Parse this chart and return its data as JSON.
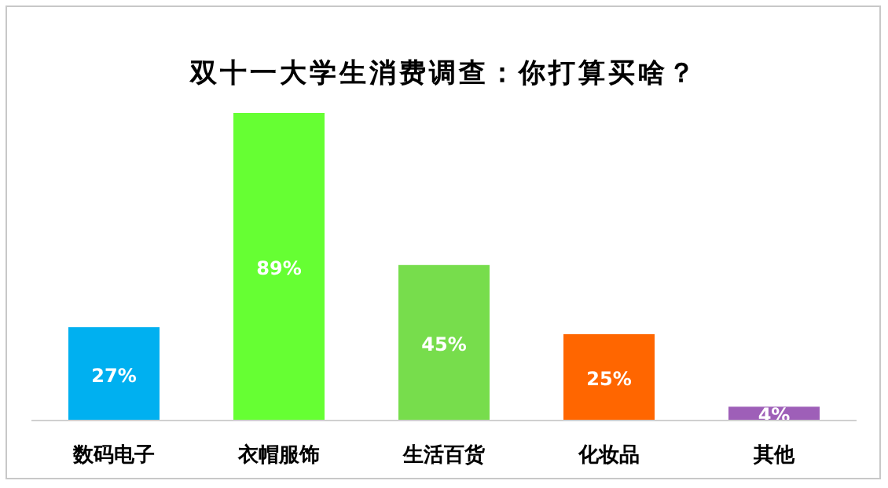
{
  "chart_data": {
    "type": "bar",
    "title": "双十一大学生消费调查：你打算买啥？",
    "categories": [
      "数码电子",
      "衣帽服饰",
      "生活百货",
      "化妆品",
      "其他"
    ],
    "values": [
      27,
      89,
      45,
      25,
      4
    ],
    "colors": [
      "#00b0f0",
      "#66ff33",
      "#77dd4c",
      "#ff6600",
      "#9e5fb8"
    ],
    "value_labels": [
      "27%",
      "89%",
      "45%",
      "25%",
      "4%"
    ]
  }
}
